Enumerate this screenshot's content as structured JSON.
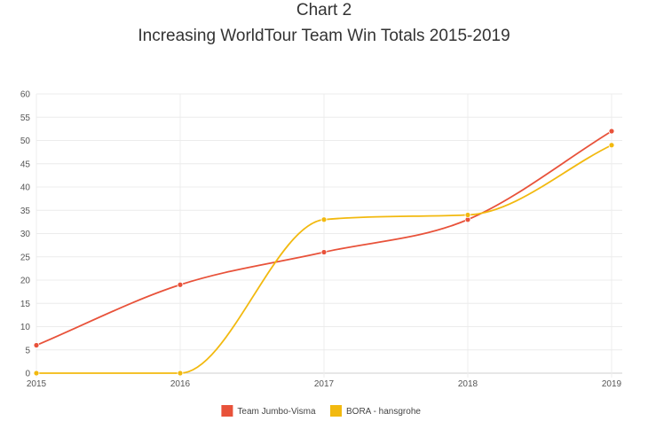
{
  "title": "Chart 2",
  "subtitle": "Increasing WorldTour Team Win Totals 2015-2019",
  "chart_data": {
    "type": "line",
    "x": [
      "2015",
      "2016",
      "2017",
      "2018",
      "2019"
    ],
    "series": [
      {
        "name": "Team Jumbo-Visma",
        "color": "#e8523a",
        "values": [
          6,
          19,
          26,
          33,
          52
        ]
      },
      {
        "name": "BORA - hansgrohe",
        "color": "#f2b90f",
        "values": [
          0,
          0,
          33,
          34,
          49
        ]
      }
    ],
    "ylim": [
      0,
      60
    ],
    "yticks": [
      0,
      5,
      10,
      15,
      20,
      25,
      30,
      35,
      40,
      45,
      50,
      55,
      60
    ],
    "grid": true,
    "legend": "bottom",
    "curve": "smooth"
  }
}
